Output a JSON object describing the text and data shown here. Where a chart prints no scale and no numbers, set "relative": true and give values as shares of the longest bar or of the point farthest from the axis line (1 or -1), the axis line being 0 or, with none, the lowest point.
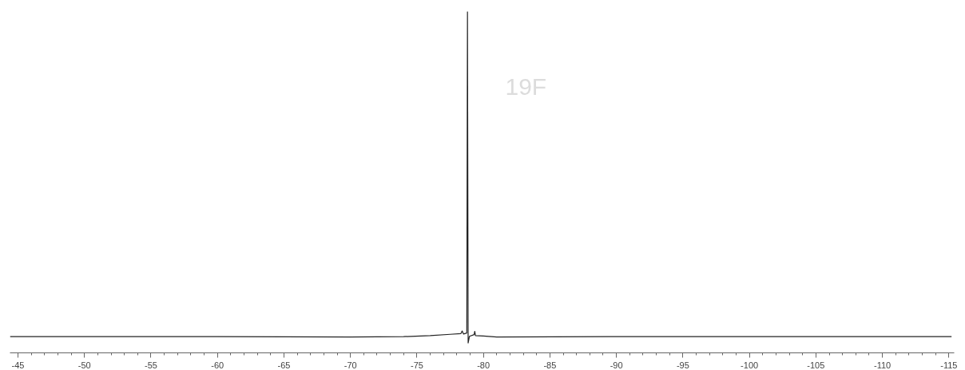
{
  "chart_data": {
    "type": "line",
    "relative": true,
    "xlim": [
      -44.4,
      -115.4
    ],
    "xticks": [
      -45,
      -50,
      -55,
      -60,
      -65,
      -70,
      -75,
      -80,
      -85,
      -90,
      -95,
      -100,
      -105,
      -110,
      -115
    ],
    "annotations": [
      "19F"
    ],
    "series": [
      {
        "color": "#222222",
        "x": [
          -44.4,
          -60,
          -70,
          -74,
          -76,
          -77.5,
          -78.3,
          -78.4,
          -78.5,
          -78.75,
          -78.8,
          -78.85,
          -78.95,
          -79.3,
          -79.35,
          -79.4,
          -80,
          -81,
          -90,
          -100,
          -115.2
        ],
        "values": [
          0.019,
          0.019,
          0.018,
          0.019,
          0.022,
          0.026,
          0.028,
          0.036,
          0.027,
          0.03,
          1,
          0,
          0.02,
          0.025,
          0.035,
          0.022,
          0.021,
          0.018,
          0.019,
          0.019,
          0.019
        ]
      }
    ]
  }
}
